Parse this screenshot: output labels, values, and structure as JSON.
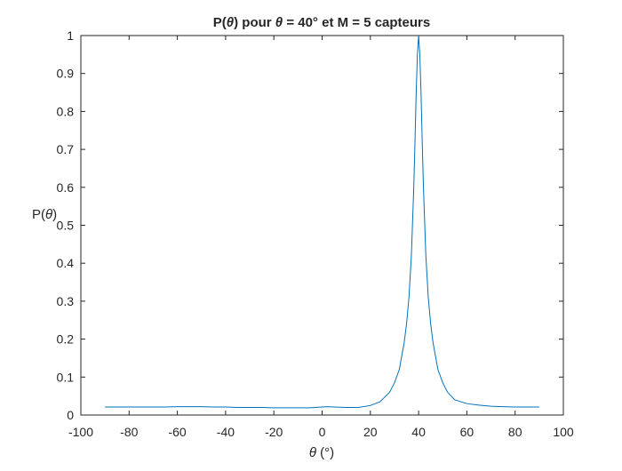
{
  "chart_data": {
    "type": "line",
    "title_prefix": "P(",
    "title_theta": "θ",
    "title_middle": ") pour ",
    "title_theta2": "θ",
    "title_suffix": " = 40° et M = 5 capteurs",
    "xlabel_theta": "θ",
    "xlabel_unit": " (°)",
    "ylabel_prefix": "P(",
    "ylabel_theta": "θ",
    "ylabel_suffix": ")",
    "xlim": [
      -100,
      100
    ],
    "ylim": [
      0,
      1
    ],
    "x_ticks": [
      -100,
      -80,
      -60,
      -40,
      -20,
      0,
      20,
      40,
      60,
      80,
      100
    ],
    "x_tick_labels": [
      "-100",
      "-80",
      "-60",
      "-40",
      "-20",
      "0",
      "20",
      "40",
      "60",
      "80",
      "100"
    ],
    "y_ticks": [
      0,
      0.1,
      0.2,
      0.3,
      0.4,
      0.5,
      0.6,
      0.7,
      0.8,
      0.9,
      1
    ],
    "y_tick_labels": [
      "0",
      "0.1",
      "0.2",
      "0.3",
      "0.4",
      "0.5",
      "0.6",
      "0.7",
      "0.8",
      "0.9",
      "1"
    ],
    "grid": false,
    "line_color": "#0072BD",
    "series": [
      {
        "x": [
          -90,
          -85,
          -80,
          -75,
          -70,
          -65,
          -60,
          -55,
          -50,
          -45,
          -40,
          -35,
          -30,
          -25,
          -20,
          -15,
          -10,
          -5,
          0,
          2,
          5,
          10,
          15,
          20,
          24,
          28,
          30,
          32,
          34,
          35,
          36,
          37,
          38,
          38.5,
          39,
          39.5,
          40,
          40.5,
          41,
          41.5,
          42,
          43,
          44,
          45,
          46,
          48,
          50,
          52,
          55,
          60,
          65,
          70,
          75,
          80,
          85,
          90
        ],
        "y": [
          0.021,
          0.021,
          0.021,
          0.021,
          0.021,
          0.021,
          0.022,
          0.022,
          0.022,
          0.021,
          0.021,
          0.02,
          0.02,
          0.02,
          0.019,
          0.019,
          0.019,
          0.019,
          0.021,
          0.022,
          0.021,
          0.02,
          0.02,
          0.025,
          0.035,
          0.06,
          0.085,
          0.12,
          0.19,
          0.24,
          0.31,
          0.42,
          0.6,
          0.72,
          0.85,
          0.95,
          1.0,
          0.95,
          0.85,
          0.72,
          0.6,
          0.42,
          0.31,
          0.24,
          0.19,
          0.12,
          0.085,
          0.06,
          0.04,
          0.03,
          0.026,
          0.023,
          0.022,
          0.021,
          0.021,
          0.021
        ]
      }
    ]
  }
}
